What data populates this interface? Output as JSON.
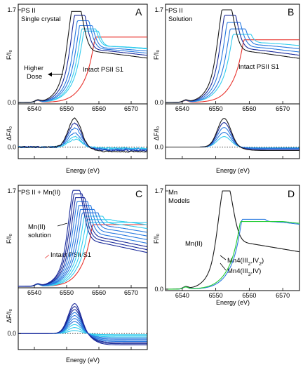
{
  "colors": {
    "red": "#e8322c",
    "black": "#1a1a1a",
    "dark_blue": "#1a2a9a",
    "cyan": "#33ccee",
    "blue": "#2a7ae0",
    "green": "#22cc33"
  },
  "chart_data": [
    {
      "type": "line",
      "panel_label": "A",
      "title_lines": [
        "PS II",
        "Single crystal"
      ],
      "xlabel": "Energy (eV)",
      "ylabel_top": "F/I₀",
      "ylabel_bottom": "ΔF/I₀",
      "xlim": [
        6535,
        6575
      ],
      "xticks": [
        "6540",
        "6550",
        "6560",
        "6570"
      ],
      "top_ylim": [
        0,
        1.7
      ],
      "top_yticks": [
        "0.0",
        "1.7"
      ],
      "bottom_ylim": [
        -0.25,
        0.95
      ],
      "bottom_yticks": [
        "0.0"
      ],
      "annotations": {
        "higher_dose": [
          "Higher",
          "Dose"
        ],
        "intact": "Intact PSII S1"
      },
      "series_top": [
        {
          "name": "Intact PSII S1",
          "edge": 6557.5,
          "width": 2.6,
          "peak": 1.15,
          "post": 1.25,
          "post_decay": 0.004,
          "color_key": "red"
        },
        {
          "edge": 6553.5,
          "width": 2.4,
          "peak": 1.26,
          "post": 1.05,
          "post_decay": 0.004,
          "color_key": "cyan"
        },
        {
          "edge": 6552.8,
          "width": 2.3,
          "peak": 1.3,
          "post": 1.05,
          "post_decay": 0.0045,
          "color_key": "cyan"
        },
        {
          "edge": 6552.0,
          "width": 2.3,
          "peak": 1.36,
          "post": 1.02,
          "post_decay": 0.005,
          "color_key": "blue"
        },
        {
          "edge": 6551.2,
          "width": 2.2,
          "peak": 1.45,
          "post": 1.0,
          "post_decay": 0.006,
          "color_key": "blue"
        },
        {
          "edge": 6550.2,
          "width": 2.1,
          "peak": 1.55,
          "post": 0.98,
          "post_decay": 0.007,
          "color_key": "dark_blue"
        },
        {
          "edge": 6549.2,
          "width": 2.0,
          "peak": 1.62,
          "post": 0.95,
          "post_decay": 0.008,
          "color_key": "black"
        }
      ],
      "series_bottom": [
        {
          "amp": 0.22,
          "tail": -0.03,
          "noise": 0.025,
          "color_key": "cyan"
        },
        {
          "amp": 0.3,
          "tail": -0.04,
          "noise": 0.025,
          "color_key": "cyan"
        },
        {
          "amp": 0.4,
          "tail": -0.06,
          "noise": 0.02,
          "color_key": "blue"
        },
        {
          "amp": 0.55,
          "tail": -0.08,
          "noise": 0.02,
          "color_key": "blue"
        },
        {
          "amp": 0.68,
          "tail": -0.1,
          "noise": 0.02,
          "color_key": "dark_blue"
        },
        {
          "amp": 0.82,
          "tail": -0.13,
          "noise": 0.02,
          "color_key": "black"
        }
      ]
    },
    {
      "type": "line",
      "panel_label": "B",
      "title_lines": [
        "PS II",
        "Solution"
      ],
      "xlabel": "Energy (eV)",
      "ylabel_top": "F/I₀",
      "ylabel_bottom": "ΔF/I₀",
      "xlim": [
        6535,
        6575
      ],
      "xticks": [
        "6540",
        "6550",
        "6560",
        "6570"
      ],
      "top_ylim": [
        0,
        1.7
      ],
      "top_yticks": [
        "0.0",
        "1.7"
      ],
      "bottom_ylim": [
        -0.25,
        0.95
      ],
      "bottom_yticks": [
        "0.0"
      ],
      "annotations": {
        "intact": "Intact PSII S1"
      },
      "series_top": [
        {
          "name": "Intact PSII S1",
          "edge": 6557.2,
          "width": 2.5,
          "peak": 1.1,
          "post": 1.28,
          "post_decay": 0.004,
          "color_key": "red"
        },
        {
          "edge": 6553.5,
          "width": 2.4,
          "peak": 1.2,
          "post": 1.12,
          "post_decay": 0.005,
          "color_key": "cyan"
        },
        {
          "edge": 6552.5,
          "width": 2.3,
          "peak": 1.3,
          "post": 1.08,
          "post_decay": 0.006,
          "color_key": "blue"
        },
        {
          "edge": 6551.4,
          "width": 2.2,
          "peak": 1.42,
          "post": 1.04,
          "post_decay": 0.007,
          "color_key": "blue"
        },
        {
          "edge": 6550.4,
          "width": 2.1,
          "peak": 1.55,
          "post": 1.0,
          "post_decay": 0.008,
          "color_key": "dark_blue"
        },
        {
          "edge": 6549.5,
          "width": 2.0,
          "peak": 1.65,
          "post": 0.96,
          "post_decay": 0.009,
          "color_key": "black"
        }
      ],
      "series_bottom": [
        {
          "amp": 0.3,
          "tail": -0.02,
          "noise": 0,
          "color_key": "cyan"
        },
        {
          "amp": 0.42,
          "tail": -0.03,
          "noise": 0,
          "color_key": "blue"
        },
        {
          "amp": 0.56,
          "tail": -0.05,
          "noise": 0,
          "color_key": "blue"
        },
        {
          "amp": 0.7,
          "tail": -0.07,
          "noise": 0,
          "color_key": "dark_blue"
        },
        {
          "amp": 0.82,
          "tail": -0.1,
          "noise": 0,
          "color_key": "black"
        }
      ]
    },
    {
      "type": "line",
      "panel_label": "C",
      "title_lines": [
        "PS II + Mn(II)"
      ],
      "xlabel": "Energy (eV)",
      "ylabel_top": "F/I₀",
      "ylabel_bottom": "ΔF/I₀",
      "xlim": [
        6535,
        6575
      ],
      "xticks": [
        "6540",
        "6550",
        "6560",
        "6570"
      ],
      "top_ylim": [
        0,
        1.7
      ],
      "top_yticks": [
        "1.7"
      ],
      "bottom_ylim": [
        -0.35,
        0.95
      ],
      "bottom_yticks": [
        "0.0"
      ],
      "annotations": {
        "mn_solution": [
          "Mn(II)",
          "solution"
        ],
        "intact": "Intact PSII S1"
      },
      "series_top": [
        {
          "name": "Intact PSII S1",
          "edge": 6557.0,
          "width": 2.5,
          "peak": 1.05,
          "post": 1.3,
          "post_decay": 0.005,
          "color_key": "red"
        },
        {
          "edge": 6555.8,
          "width": 2.45,
          "peak": 1.09,
          "post": 1.25,
          "post_decay": 0.006,
          "color_key": "cyan"
        },
        {
          "edge": 6554.8,
          "width": 2.4,
          "peak": 1.14,
          "post": 1.2,
          "post_decay": 0.007,
          "color_key": "cyan"
        },
        {
          "edge": 6553.9,
          "width": 2.35,
          "peak": 1.2,
          "post": 1.15,
          "post_decay": 0.008,
          "color_key": "cyan"
        },
        {
          "edge": 6553.1,
          "width": 2.3,
          "peak": 1.26,
          "post": 1.1,
          "post_decay": 0.009,
          "color_key": "blue"
        },
        {
          "edge": 6552.4,
          "width": 2.25,
          "peak": 1.32,
          "post": 1.05,
          "post_decay": 0.01,
          "color_key": "blue"
        },
        {
          "edge": 6551.7,
          "width": 2.2,
          "peak": 1.39,
          "post": 1.0,
          "post_decay": 0.011,
          "color_key": "blue"
        },
        {
          "edge": 6551.0,
          "width": 2.15,
          "peak": 1.46,
          "post": 0.95,
          "post_decay": 0.012,
          "color_key": "blue"
        },
        {
          "edge": 6550.4,
          "width": 2.1,
          "peak": 1.53,
          "post": 0.9,
          "post_decay": 0.013,
          "color_key": "dark_blue"
        },
        {
          "edge": 6549.8,
          "width": 2.05,
          "peak": 1.6,
          "post": 0.86,
          "post_decay": 0.014,
          "color_key": "dark_blue"
        },
        {
          "edge": 6549.3,
          "width": 2.0,
          "peak": 1.66,
          "post": 0.82,
          "post_decay": 0.015,
          "color_key": "dark_blue"
        }
      ],
      "series_bottom": [
        {
          "amp": 0.08,
          "tail": -0.03,
          "noise": 0,
          "color_key": "cyan"
        },
        {
          "amp": 0.16,
          "tail": -0.06,
          "noise": 0,
          "color_key": "cyan"
        },
        {
          "amp": 0.24,
          "tail": -0.09,
          "noise": 0,
          "color_key": "cyan"
        },
        {
          "amp": 0.32,
          "tail": -0.12,
          "noise": 0,
          "color_key": "blue"
        },
        {
          "amp": 0.4,
          "tail": -0.15,
          "noise": 0,
          "color_key": "blue"
        },
        {
          "amp": 0.48,
          "tail": -0.18,
          "noise": 0,
          "color_key": "blue"
        },
        {
          "amp": 0.56,
          "tail": -0.21,
          "noise": 0,
          "color_key": "blue"
        },
        {
          "amp": 0.64,
          "tail": -0.24,
          "noise": 0,
          "color_key": "dark_blue"
        },
        {
          "amp": 0.72,
          "tail": -0.27,
          "noise": 0,
          "color_key": "dark_blue"
        },
        {
          "amp": 0.8,
          "tail": -0.3,
          "noise": 0,
          "color_key": "dark_blue"
        }
      ]
    },
    {
      "type": "line",
      "panel_label": "D",
      "title_lines": [
        "Mn",
        "Models"
      ],
      "xlabel": "Energy (eV)",
      "ylabel_top": "F/I₀",
      "xlim": [
        6535,
        6575
      ],
      "xticks": [
        "6540",
        "6550",
        "6560",
        "6570"
      ],
      "top_ylim": [
        0,
        1.7
      ],
      "top_yticks": [
        "0.0",
        "1.7"
      ],
      "annotations": {
        "mn2": "Mn(II)"
      },
      "series_top": [
        {
          "name": "Mn(II)",
          "edge": 6549.4,
          "width": 2.0,
          "peak": 1.65,
          "post": 0.82,
          "post_decay": 0.012,
          "color_key": "black"
        },
        {
          "name_main": "Mn4(III",
          "name_sub": "2",
          "name_mid": ",IV",
          "name_sub2": "2",
          "name_end": ")",
          "edge": 6556.4,
          "width": 2.5,
          "peak": 1.16,
          "post": 1.2,
          "post_decay": 0.006,
          "color_key": "blue"
        },
        {
          "name_main": "Mn4(III",
          "name_sub": "3",
          "name_mid": ",IV)",
          "name_sub2": "",
          "name_end": "",
          "edge": 6556.0,
          "width": 2.6,
          "peak": 1.12,
          "post": 1.22,
          "post_decay": 0.006,
          "color_key": "green"
        }
      ]
    }
  ]
}
